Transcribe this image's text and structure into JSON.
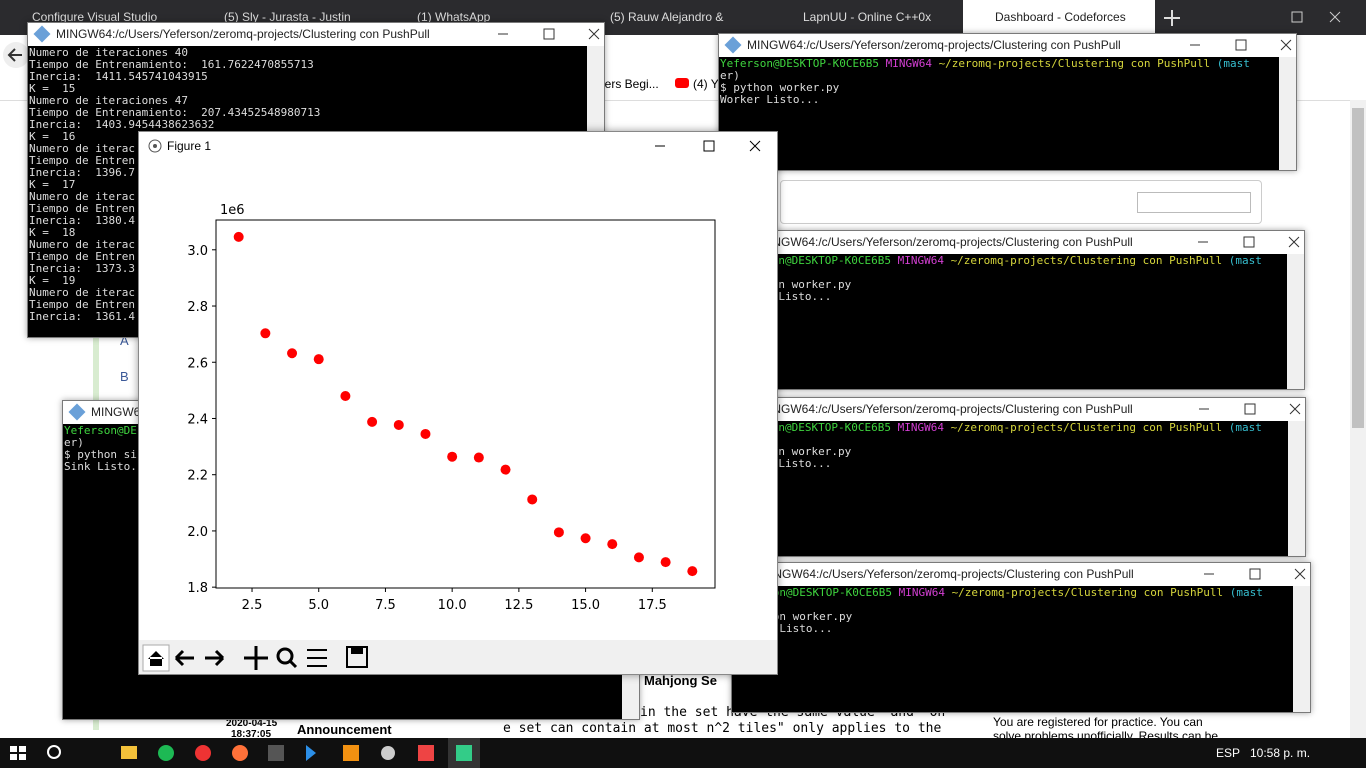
{
  "browser": {
    "tabs": [
      "Configure Visual Studio",
      "(5) Sly - Jurasta - Justin",
      "(1) WhatsApp",
      "(5) Rauw Alejandro &",
      "LapnUU - Online C++0x",
      "Dashboard - Codeforces"
    ],
    "bookmarks": [
      "bers Begi...",
      "(4) Y"
    ],
    "links": [
      "A",
      "B"
    ],
    "problem_title": "Mahjong Se",
    "date": "2020-04-15",
    "time": "18:37:05",
    "announcement": "Announcement",
    "comment_lines": [
      "in the set have the same value\" and \"on",
      "e set can contain at most n^2 tiles\" only applies to the"
    ],
    "sidebar_lines": [
      "You are registered for practice. You can",
      "solve problems unofficially. Results can be"
    ]
  },
  "terminals": [
    {
      "title": "MINGW64:/c/Users/Yeferson/zeromq-projects/Clustering con PushPull",
      "lines": [
        "Numero de iteraciones 40",
        "Tiempo de Entrenamiento:  161.7622470855713",
        "Inercia:  1411.545741043915",
        "K =  15",
        "Numero de iteraciones 47",
        "Tiempo de Entrenamiento:  207.43452548980713",
        "Inercia:  1403.9454438623632",
        "K =  16",
        "Numero de iterac",
        "Tiempo de Entren",
        "Inercia:  1396.7",
        "K =  17",
        "Numero de iterac",
        "Tiempo de Entren",
        "Inercia:  1380.4",
        "K =  18",
        "Numero de iterac",
        "Tiempo de Entren",
        "Inercia:  1373.3",
        "K =  19",
        "Numero de iterac",
        "Tiempo de Entren",
        "Inercia:  1361.4"
      ]
    },
    {
      "title": "MINGW64:/c/Users/Yeferson/zeromq-projects/Clustering con PushPull",
      "prompt": {
        "user": "Yeferson@DESKTOP-K0CE6B5",
        "shell": "MINGW64",
        "path": "~/zeromq-projects/Clustering con PushPull",
        "branch": "(mast"
      },
      "lines": [
        "er)",
        "$ python worker.py",
        "Worker Listo..."
      ]
    },
    {
      "title": "MINGW64:/c/Users/Yeferson/zeromq-projects/Clustering con PushPull",
      "prompt": {
        "user": "Yeferson@DESKTOP-K0CE6B5",
        "shell": "MINGW64",
        "path": "~/zeromq-projects/Clustering con PushPull",
        "branch": "(mast"
      },
      "lines": [
        "",
        "$ python worker.py",
        "Worker Listo..."
      ]
    },
    {
      "title": "MINGW64:/c/Users/Yeferson/zeromq-projects/Clustering con PushPull",
      "prompt": {
        "user": "Yeferson@DESKTOP-K0CE6B5",
        "shell": "MINGW64",
        "path": "~/zeromq-projects/Clustering con PushPull",
        "branch": "(mast"
      },
      "lines": [
        "",
        "$ python worker.py",
        "Worker Listo..."
      ]
    },
    {
      "title": "MINGW64:/c/Users/Yeferson/zeromq-projects/Clustering con PushPull",
      "prompt": {
        "user": "Yeferson@DESKTOP-K0CE6B5",
        "shell": "MINGW64",
        "path": "~/zeromq-projects/Clustering con PushPull",
        "branch": "(mast"
      },
      "lines": [
        "",
        "$ python worker.py",
        "Worker Listo..."
      ]
    },
    {
      "title": "MINGW64:/c/Users/Yeferson/zeromq-projects/Clustering con PushPull",
      "prompt": {
        "user": "Yeferson@DE",
        "shell": "",
        "path": "",
        "branch": ""
      },
      "lines": [
        "er)",
        "$ python si",
        "Sink Listo..."
      ]
    }
  ],
  "figure_window": {
    "title": "Figure 1"
  },
  "chart_data": {
    "type": "scatter",
    "y_offset_label": "1e6",
    "color": "#ff0000",
    "x": [
      2,
      3,
      4,
      5,
      6,
      7,
      8,
      9,
      10,
      11,
      12,
      13,
      14,
      15,
      16,
      17,
      18,
      19
    ],
    "values": [
      3.046,
      2.703,
      2.632,
      2.611,
      2.48,
      2.388,
      2.377,
      2.345,
      2.264,
      2.261,
      2.218,
      2.112,
      1.995,
      1.974,
      1.953,
      1.906,
      1.889,
      1.857
    ],
    "xlim": [
      1.15,
      19.85
    ],
    "ylim": [
      1.797,
      3.106
    ],
    "xticks": [
      2.5,
      {
        "value": 5,
        "label": "5.0"
      },
      7.5,
      {
        "value": 10,
        "label": "10.0"
      },
      12.5,
      {
        "value": 15,
        "label": "15.0"
      },
      17.5
    ],
    "yticks": [
      1.8,
      {
        "value": 2,
        "label": "2.0"
      },
      2.2,
      2.4,
      2.6,
      2.8,
      {
        "value": 3,
        "label": "3.0"
      }
    ],
    "grid": false
  },
  "taskbar": {
    "language": "ESP",
    "clock": "10:58 p. m."
  }
}
